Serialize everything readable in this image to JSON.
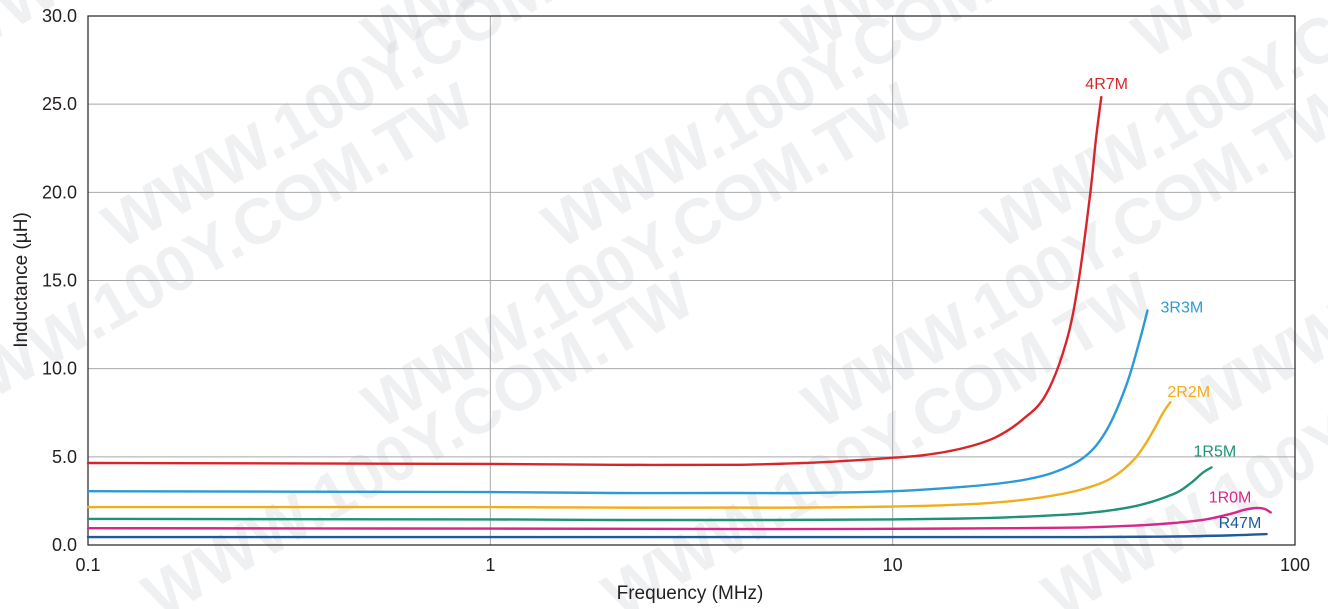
{
  "watermark": "WWW.100Y.COM.TW",
  "chart_data": {
    "type": "line",
    "xlabel": "Frequency (MHz)",
    "ylabel": "Inductance (µH)",
    "x_scale": "log",
    "xlim": [
      0.1,
      100
    ],
    "ylim": [
      0,
      30
    ],
    "x_ticks": [
      {
        "value": 0.1,
        "label": "0.1"
      },
      {
        "value": 1,
        "label": "1"
      },
      {
        "value": 10,
        "label": "10"
      },
      {
        "value": 100,
        "label": "100"
      }
    ],
    "y_ticks": [
      {
        "value": 0,
        "label": "0.0"
      },
      {
        "value": 5,
        "label": "5.0"
      },
      {
        "value": 10,
        "label": "10.0"
      },
      {
        "value": 15,
        "label": "15.0"
      },
      {
        "value": 20,
        "label": "20.0"
      },
      {
        "value": 25,
        "label": "25.0"
      },
      {
        "value": 30,
        "label": "30.0"
      }
    ],
    "grid": true,
    "legend": "inline labels at curve ends",
    "series": [
      {
        "name": "4R7M",
        "color": "#d7262b",
        "x": [
          0.1,
          1,
          2,
          4,
          6,
          8,
          10,
          12,
          15,
          18,
          21,
          24,
          27,
          29,
          31,
          32,
          33
        ],
        "y": [
          4.65,
          4.6,
          4.55,
          4.55,
          4.65,
          4.8,
          4.95,
          5.1,
          5.5,
          6.1,
          7.1,
          8.5,
          11.5,
          15.0,
          20.0,
          23.0,
          25.4
        ]
      },
      {
        "name": "3R3M",
        "color": "#2e9ad3",
        "x": [
          0.1,
          1,
          2,
          4,
          6,
          10,
          15,
          20,
          25,
          30,
          34,
          38,
          41,
          43
        ],
        "y": [
          3.05,
          3.0,
          2.95,
          2.95,
          2.95,
          3.05,
          3.3,
          3.6,
          4.1,
          5.0,
          6.5,
          9.0,
          11.5,
          13.3
        ]
      },
      {
        "name": "2R2M",
        "color": "#f2ad1d",
        "x": [
          0.1,
          1,
          2,
          4,
          6,
          10,
          15,
          20,
          25,
          30,
          35,
          40,
          44,
          47,
          49
        ],
        "y": [
          2.15,
          2.15,
          2.12,
          2.12,
          2.12,
          2.18,
          2.3,
          2.5,
          2.8,
          3.2,
          3.8,
          4.9,
          6.3,
          7.5,
          8.1
        ]
      },
      {
        "name": "1R5M",
        "color": "#1f9277",
        "x": [
          0.1,
          1,
          2,
          5,
          10,
          15,
          20,
          30,
          40,
          50,
          55,
          59,
          62
        ],
        "y": [
          1.48,
          1.45,
          1.42,
          1.42,
          1.45,
          1.5,
          1.58,
          1.8,
          2.2,
          2.9,
          3.5,
          4.1,
          4.4
        ]
      },
      {
        "name": "1R0M",
        "color": "#d9268a",
        "x": [
          0.1,
          1,
          5,
          10,
          20,
          30,
          40,
          50,
          60,
          70,
          75,
          80,
          84,
          87
        ],
        "y": [
          0.95,
          0.93,
          0.9,
          0.92,
          0.95,
          1.0,
          1.1,
          1.25,
          1.45,
          1.8,
          2.0,
          2.1,
          2.05,
          1.85
        ]
      },
      {
        "name": "R47M",
        "color": "#1d5b9c",
        "x": [
          0.1,
          1,
          10,
          30,
          50,
          70,
          85
        ],
        "y": [
          0.45,
          0.45,
          0.45,
          0.45,
          0.48,
          0.55,
          0.62
        ]
      }
    ]
  },
  "colors": {
    "grid": "#a7a9ac",
    "frame": "#231f20",
    "text": "#231f20"
  }
}
